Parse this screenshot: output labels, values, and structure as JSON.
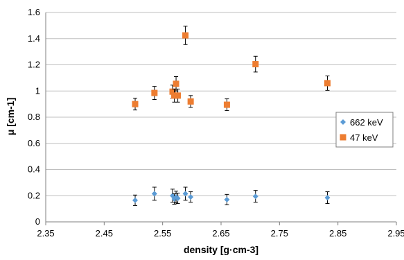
{
  "chart_data": {
    "type": "scatter",
    "title": "",
    "xlabel": "density [g·cm-3]",
    "ylabel": "μ [cm-1]",
    "xlim": [
      2.35,
      2.95
    ],
    "ylim": [
      0,
      1.6
    ],
    "xticks": [
      "2.35",
      "2.45",
      "2.55",
      "2.65",
      "2.75",
      "2.85",
      "2.95"
    ],
    "yticks": [
      "0",
      "0.2",
      "0.4",
      "0.6",
      "0.8",
      "1",
      "1.2",
      "1.4",
      "1.6"
    ],
    "grid": "horizontal",
    "legend_position": "right",
    "series": [
      {
        "name": "662 keV",
        "color": "#5b9bd5",
        "marker": "diamond",
        "points": [
          {
            "x": 2.503,
            "y": 0.165,
            "err": 0.04
          },
          {
            "x": 2.536,
            "y": 0.215,
            "err": 0.05
          },
          {
            "x": 2.567,
            "y": 0.2,
            "err": 0.05
          },
          {
            "x": 2.57,
            "y": 0.175,
            "err": 0.04
          },
          {
            "x": 2.573,
            "y": 0.19,
            "err": 0.045
          },
          {
            "x": 2.576,
            "y": 0.18,
            "err": 0.04
          },
          {
            "x": 2.589,
            "y": 0.215,
            "err": 0.05
          },
          {
            "x": 2.598,
            "y": 0.19,
            "err": 0.04
          },
          {
            "x": 2.66,
            "y": 0.17,
            "err": 0.04
          },
          {
            "x": 2.709,
            "y": 0.195,
            "err": 0.045
          },
          {
            "x": 2.832,
            "y": 0.185,
            "err": 0.045
          }
        ]
      },
      {
        "name": "47 keV",
        "color": "#ed7d31",
        "marker": "square",
        "points": [
          {
            "x": 2.503,
            "y": 0.9,
            "err": 0.045
          },
          {
            "x": 2.536,
            "y": 0.985,
            "err": 0.05
          },
          {
            "x": 2.567,
            "y": 0.995,
            "err": 0.05
          },
          {
            "x": 2.57,
            "y": 0.965,
            "err": 0.05
          },
          {
            "x": 2.573,
            "y": 1.055,
            "err": 0.055
          },
          {
            "x": 2.576,
            "y": 0.965,
            "err": 0.05
          },
          {
            "x": 2.589,
            "y": 1.425,
            "err": 0.07
          },
          {
            "x": 2.598,
            "y": 0.92,
            "err": 0.045
          },
          {
            "x": 2.66,
            "y": 0.895,
            "err": 0.045
          },
          {
            "x": 2.709,
            "y": 1.205,
            "err": 0.06
          },
          {
            "x": 2.832,
            "y": 1.06,
            "err": 0.055
          }
        ]
      }
    ]
  }
}
